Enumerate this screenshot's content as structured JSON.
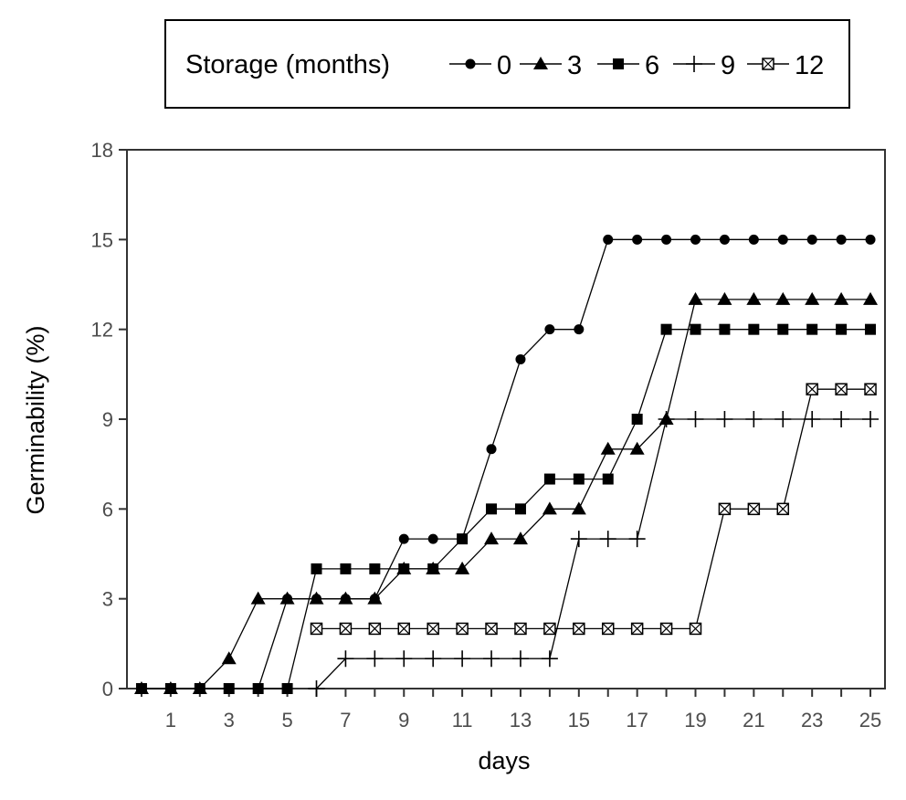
{
  "chart_data": {
    "type": "line",
    "xlabel": "days",
    "ylabel": "Germinability (%)",
    "legend_title": "Storage (months)",
    "legend_position": "top",
    "grid": false,
    "xlim": [
      -0.5,
      25.5
    ],
    "ylim": [
      0,
      18
    ],
    "x_ticks": [
      0,
      1,
      2,
      3,
      4,
      5,
      6,
      7,
      8,
      9,
      10,
      11,
      12,
      13,
      14,
      15,
      16,
      17,
      18,
      19,
      20,
      21,
      22,
      23,
      24,
      25
    ],
    "x_tick_labels": [
      "",
      "1",
      "",
      "3",
      "",
      "5",
      "",
      "7",
      "",
      "9",
      "",
      "11",
      "",
      "13",
      "",
      "15",
      "",
      "17",
      "",
      "19",
      "",
      "21",
      "",
      "23",
      "",
      "25"
    ],
    "y_ticks": [
      0,
      3,
      6,
      9,
      12,
      15,
      18
    ],
    "y_tick_labels": [
      "0",
      "3",
      "6",
      "9",
      "12",
      "15",
      "18"
    ],
    "series": [
      {
        "name": "0",
        "marker": "circle",
        "x": [
          0,
          1,
          2,
          3,
          4,
          5,
          6,
          7,
          8,
          9,
          10,
          11,
          12,
          13,
          14,
          15,
          16,
          17,
          18,
          19,
          20,
          21,
          22,
          23,
          24,
          25
        ],
        "values": [
          0,
          0,
          0,
          0,
          0,
          3,
          3,
          3,
          3,
          5,
          5,
          5,
          8,
          11,
          12,
          12,
          15,
          15,
          15,
          15,
          15,
          15,
          15,
          15,
          15,
          15
        ]
      },
      {
        "name": "3",
        "marker": "triangle",
        "x": [
          0,
          1,
          2,
          3,
          4,
          5,
          6,
          7,
          8,
          9,
          10,
          11,
          12,
          13,
          14,
          15,
          16,
          17,
          18,
          19,
          20,
          21,
          22,
          23,
          24,
          25
        ],
        "values": [
          0,
          0,
          0,
          1,
          3,
          3,
          3,
          3,
          3,
          4,
          4,
          4,
          5,
          5,
          6,
          6,
          8,
          8,
          9,
          13,
          13,
          13,
          13,
          13,
          13,
          13
        ]
      },
      {
        "name": "6",
        "marker": "square",
        "x": [
          0,
          1,
          2,
          3,
          4,
          5,
          6,
          7,
          8,
          9,
          10,
          11,
          12,
          13,
          14,
          15,
          16,
          17,
          18,
          19,
          20,
          21,
          22,
          23,
          24,
          25
        ],
        "values": [
          0,
          0,
          0,
          0,
          0,
          0,
          4,
          4,
          4,
          4,
          4,
          5,
          6,
          6,
          7,
          7,
          7,
          9,
          12,
          12,
          12,
          12,
          12,
          12,
          12,
          12
        ]
      },
      {
        "name": "9",
        "marker": "plus",
        "x": [
          6,
          7,
          8,
          9,
          10,
          11,
          12,
          13,
          14,
          15,
          16,
          17,
          18,
          19,
          20,
          21,
          22,
          23,
          24,
          25
        ],
        "values": [
          0,
          1,
          1,
          1,
          1,
          1,
          1,
          1,
          1,
          5,
          5,
          5,
          9,
          9,
          9,
          9,
          9,
          9,
          9,
          9
        ]
      },
      {
        "name": "12",
        "marker": "square-x",
        "x": [
          6,
          7,
          8,
          9,
          10,
          11,
          12,
          13,
          14,
          15,
          16,
          17,
          18,
          19,
          20,
          21,
          22,
          23,
          24,
          25
        ],
        "values": [
          2,
          2,
          2,
          2,
          2,
          2,
          2,
          2,
          2,
          2,
          2,
          2,
          2,
          2,
          6,
          6,
          6,
          10,
          10,
          10
        ]
      }
    ]
  }
}
